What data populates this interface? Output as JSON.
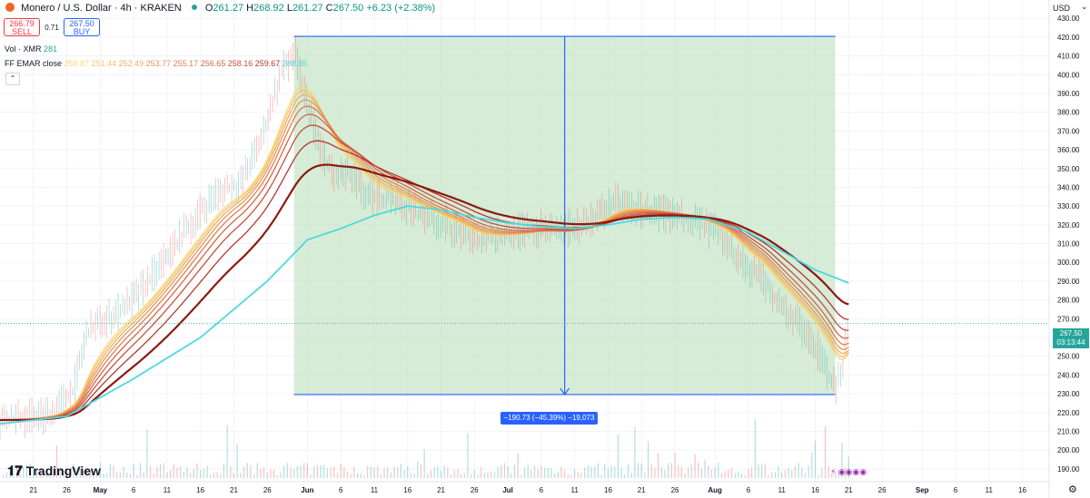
{
  "header": {
    "symbol_title": "Monero / U.S. Dollar · 4h · KRAKEN",
    "ohlc": {
      "o_label": "O",
      "o": "261.27",
      "h_label": "H",
      "h": "268.92",
      "l_label": "L",
      "l": "261.27",
      "c_label": "C",
      "c": "267.50",
      "change": "+6.23 (+2.38%)"
    },
    "sell_price": "266.79",
    "sell_label": "SELL",
    "spread": "0.71",
    "buy_price": "267.50",
    "buy_label": "BUY",
    "volume_label": "Vol · XMR",
    "volume_value": "281",
    "ema_label": "FF EMAR close",
    "ema_values": [
      "250.87",
      "251.44",
      "252.49",
      "253.77",
      "255.17",
      "256.65",
      "258.16",
      "259.67",
      "288.95"
    ],
    "ema_value_colors": [
      "#f7d774",
      "#f3c46a",
      "#eead60",
      "#e89658",
      "#e07e50",
      "#d66646",
      "#c94f3d",
      "#b63730",
      "#4dd9e0"
    ],
    "currency": "USD",
    "logo_text": "TradingView"
  },
  "price_tag": {
    "price": "267.50",
    "countdown": "03:13:44",
    "color": "#26a69a"
  },
  "measure": {
    "label": "−190.73 (−45.39%) −19,073",
    "color": "#2962ff",
    "fill": "#c8e6c9"
  },
  "colors": {
    "ma_line": "#4dd9e0",
    "up": "#26a69a",
    "down": "#ef5350",
    "ribbon_start": "#f7d774",
    "ribbon_end": "#8b0000"
  },
  "chart_data": {
    "type": "line",
    "title": "Monero / U.S. Dollar · 4h · KRAKEN",
    "y_ticks": [
      "190.00",
      "200.00",
      "210.00",
      "220.00",
      "230.00",
      "240.00",
      "250.00",
      "260.00",
      "270.00",
      "280.00",
      "290.00",
      "300.00",
      "310.00",
      "320.00",
      "330.00",
      "340.00",
      "350.00",
      "360.00",
      "370.00",
      "380.00",
      "390.00",
      "400.00",
      "410.00",
      "420.00",
      "430.00"
    ],
    "ylim": [
      188,
      433
    ],
    "x_ticks": [
      "21",
      "26",
      "May",
      "6",
      "11",
      "16",
      "21",
      "26",
      "Jun",
      "6",
      "11",
      "16",
      "21",
      "26",
      "Jul",
      "6",
      "11",
      "16",
      "21",
      "26",
      "Aug",
      "6",
      "11",
      "16",
      "21",
      "26",
      "Sep",
      "6",
      "11",
      "16"
    ],
    "x_dates": [
      "2025-04-21",
      "2025-04-26",
      "2025-05-01",
      "2025-05-06",
      "2025-05-11",
      "2025-05-16",
      "2025-05-21",
      "2025-05-26",
      "2025-06-01",
      "2025-06-06",
      "2025-06-11",
      "2025-06-16",
      "2025-06-21",
      "2025-06-26",
      "2025-07-01",
      "2025-07-06",
      "2025-07-11",
      "2025-07-16",
      "2025-07-21",
      "2025-07-26",
      "2025-08-01",
      "2025-08-06",
      "2025-08-11",
      "2025-08-16",
      "2025-08-21",
      "2025-08-26",
      "2025-09-01",
      "2025-09-06",
      "2025-09-11",
      "2025-09-16"
    ],
    "xlim": [
      "2025-04-16",
      "2025-09-20"
    ],
    "series": [
      {
        "values": [
          [
            "2025-04-16",
            216
          ],
          [
            "2025-04-20",
            217
          ],
          [
            "2025-04-24",
            220
          ],
          [
            "2025-04-27",
            232
          ],
          [
            "2025-04-29",
            262
          ],
          [
            "2025-05-02",
            270
          ],
          [
            "2025-05-06",
            280
          ],
          [
            "2025-05-10",
            298
          ],
          [
            "2025-05-14",
            318
          ],
          [
            "2025-05-18",
            336
          ],
          [
            "2025-05-22",
            342
          ],
          [
            "2025-05-25",
            364
          ],
          [
            "2025-05-28",
            400
          ],
          [
            "2025-05-30",
            412
          ],
          [
            "2025-06-01",
            385
          ],
          [
            "2025-06-03",
            360
          ],
          [
            "2025-06-05",
            345
          ],
          [
            "2025-06-07",
            348
          ],
          [
            "2025-06-10",
            335
          ],
          [
            "2025-06-14",
            334
          ],
          [
            "2025-06-18",
            325
          ],
          [
            "2025-06-22",
            320
          ],
          [
            "2025-06-26",
            312
          ],
          [
            "2025-07-01",
            315
          ],
          [
            "2025-07-05",
            318
          ],
          [
            "2025-07-09",
            316
          ],
          [
            "2025-07-13",
            322
          ],
          [
            "2025-07-17",
            332
          ],
          [
            "2025-07-21",
            328
          ],
          [
            "2025-07-25",
            325
          ],
          [
            "2025-07-29",
            322
          ],
          [
            "2025-08-02",
            314
          ],
          [
            "2025-08-05",
            300
          ],
          [
            "2025-08-08",
            292
          ],
          [
            "2025-08-10",
            280
          ],
          [
            "2025-08-13",
            270
          ],
          [
            "2025-08-16",
            256
          ],
          [
            "2025-08-18",
            240
          ],
          [
            "2025-08-19",
            233
          ],
          [
            "2025-08-20",
            245
          ],
          [
            "2025-08-21",
            267.5
          ]
        ]
      },
      {
        "values": [
          [
            "2025-04-16",
            214
          ],
          [
            "2025-04-26",
            218
          ],
          [
            "2025-05-06",
            238
          ],
          [
            "2025-05-16",
            260
          ],
          [
            "2025-05-26",
            290
          ],
          [
            "2025-06-01",
            312
          ],
          [
            "2025-06-06",
            318
          ],
          [
            "2025-06-11",
            325
          ],
          [
            "2025-06-16",
            330
          ],
          [
            "2025-06-21",
            328
          ],
          [
            "2025-06-26",
            324
          ],
          [
            "2025-07-01",
            321
          ],
          [
            "2025-07-06",
            319
          ],
          [
            "2025-07-11",
            318
          ],
          [
            "2025-07-16",
            320
          ],
          [
            "2025-07-21",
            323
          ],
          [
            "2025-07-26",
            324
          ],
          [
            "2025-07-31",
            323
          ],
          [
            "2025-08-06",
            316
          ],
          [
            "2025-08-11",
            306
          ],
          [
            "2025-08-16",
            296
          ],
          [
            "2025-08-21",
            289
          ]
        ]
      }
    ],
    "measure_range": {
      "start": "2025-05-30",
      "end": "2025-08-19",
      "high": 420.4,
      "low": 229.6,
      "change": -190.73,
      "change_pct": -45.39
    },
    "volume": {
      "label": "Vol · XMR",
      "latest": 281
    }
  }
}
